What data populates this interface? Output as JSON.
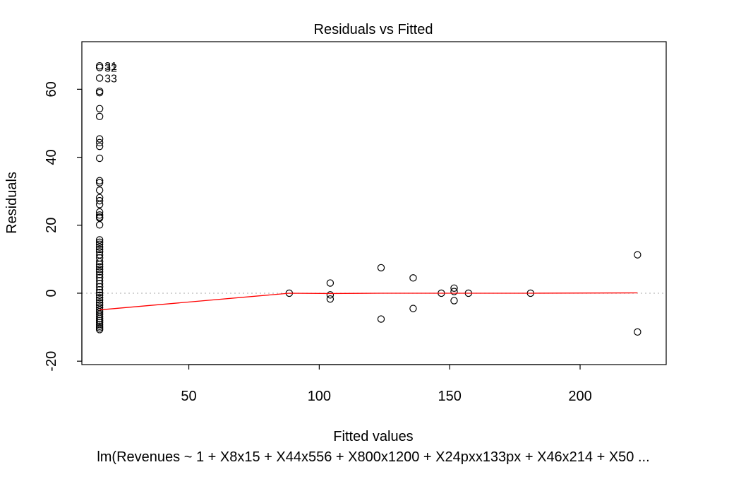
{
  "chart_data": {
    "type": "scatter",
    "title": "Residuals vs Fitted",
    "xlabel": "Fitted values",
    "ylabel": "Residuals",
    "subtitle": "lm(Revenues ~ 1 + X8x15 + X44x556 + X800x1200 + X24pxx133px + X46x214 + X50 ...",
    "xlim": [
      9,
      233
    ],
    "ylim": [
      -21,
      74
    ],
    "x_ticks": [
      50,
      100,
      150,
      200
    ],
    "y_ticks": [
      -20,
      0,
      20,
      40,
      60
    ],
    "reference_line": {
      "y": 0,
      "style": "dotted",
      "color": "#bbbbbb"
    },
    "points": [
      {
        "x": 15.8,
        "y": 66.9
      },
      {
        "x": 15.8,
        "y": 66.4
      },
      {
        "x": 15.8,
        "y": 63.3
      },
      {
        "x": 15.8,
        "y": 59.4
      },
      {
        "x": 15.8,
        "y": 59.0
      },
      {
        "x": 15.8,
        "y": 54.3
      },
      {
        "x": 15.8,
        "y": 52.0
      },
      {
        "x": 15.8,
        "y": 45.4
      },
      {
        "x": 15.8,
        "y": 44.3
      },
      {
        "x": 15.8,
        "y": 43.2
      },
      {
        "x": 15.8,
        "y": 39.7
      },
      {
        "x": 15.8,
        "y": 33.1
      },
      {
        "x": 15.8,
        "y": 32.5
      },
      {
        "x": 15.8,
        "y": 30.3
      },
      {
        "x": 15.8,
        "y": 28.1
      },
      {
        "x": 15.8,
        "y": 27.2
      },
      {
        "x": 15.8,
        "y": 26.1
      },
      {
        "x": 15.8,
        "y": 23.9
      },
      {
        "x": 15.8,
        "y": 23.0
      },
      {
        "x": 15.8,
        "y": 22.4
      },
      {
        "x": 15.8,
        "y": 22.1
      },
      {
        "x": 15.8,
        "y": 20.1
      },
      {
        "x": 15.8,
        "y": 15.7
      },
      {
        "x": 15.8,
        "y": 15.0
      },
      {
        "x": 15.8,
        "y": 14.4
      },
      {
        "x": 15.8,
        "y": 13.6
      },
      {
        "x": 15.8,
        "y": 12.9
      },
      {
        "x": 15.8,
        "y": 12.2
      },
      {
        "x": 15.8,
        "y": 11.3
      },
      {
        "x": 15.8,
        "y": 10.4
      },
      {
        "x": 15.8,
        "y": 9.3
      },
      {
        "x": 15.8,
        "y": 8.5
      },
      {
        "x": 15.8,
        "y": 7.8
      },
      {
        "x": 15.8,
        "y": 7.0
      },
      {
        "x": 15.8,
        "y": 6.3
      },
      {
        "x": 15.8,
        "y": 5.5
      },
      {
        "x": 15.8,
        "y": 4.6
      },
      {
        "x": 15.8,
        "y": 3.7
      },
      {
        "x": 15.8,
        "y": 2.8
      },
      {
        "x": 15.8,
        "y": 1.9
      },
      {
        "x": 15.8,
        "y": 1.0
      },
      {
        "x": 15.8,
        "y": 0.2
      },
      {
        "x": 15.8,
        "y": -0.6
      },
      {
        "x": 15.8,
        "y": -1.3
      },
      {
        "x": 15.8,
        "y": -2.0
      },
      {
        "x": 15.8,
        "y": -2.8
      },
      {
        "x": 15.8,
        "y": -3.5
      },
      {
        "x": 15.8,
        "y": -4.2
      },
      {
        "x": 15.8,
        "y": -4.9
      },
      {
        "x": 15.8,
        "y": -5.5
      },
      {
        "x": 15.8,
        "y": -6.2
      },
      {
        "x": 15.8,
        "y": -6.8
      },
      {
        "x": 15.8,
        "y": -7.4
      },
      {
        "x": 15.8,
        "y": -8.0
      },
      {
        "x": 15.8,
        "y": -8.6
      },
      {
        "x": 15.8,
        "y": -9.2
      },
      {
        "x": 15.8,
        "y": -9.7
      },
      {
        "x": 15.8,
        "y": -10.2
      },
      {
        "x": 15.8,
        "y": -10.7
      },
      {
        "x": 88.5,
        "y": 0.0
      },
      {
        "x": 104.2,
        "y": 3.0
      },
      {
        "x": 104.2,
        "y": -0.5
      },
      {
        "x": 104.2,
        "y": -1.7
      },
      {
        "x": 123.7,
        "y": 7.5
      },
      {
        "x": 123.7,
        "y": -7.6
      },
      {
        "x": 136.0,
        "y": 4.5
      },
      {
        "x": 136.0,
        "y": -4.5
      },
      {
        "x": 146.8,
        "y": 0.0
      },
      {
        "x": 151.7,
        "y": 1.5
      },
      {
        "x": 151.7,
        "y": 0.5
      },
      {
        "x": 151.7,
        "y": -2.2
      },
      {
        "x": 157.2,
        "y": 0.0
      },
      {
        "x": 181.0,
        "y": 0.0
      },
      {
        "x": 222.0,
        "y": 11.3
      },
      {
        "x": 222.0,
        "y": -11.4
      }
    ],
    "labeled_points": [
      {
        "label": "31",
        "x": 15.8,
        "y": 66.9
      },
      {
        "label": "32",
        "x": 15.8,
        "y": 66.4
      },
      {
        "label": "33",
        "x": 15.8,
        "y": 63.3
      }
    ],
    "smooth_line": {
      "color": "#ff0000",
      "x": [
        15.8,
        88.5,
        104.2,
        123.7,
        136.0,
        146.8,
        151.7,
        157.2,
        181.0,
        222.0
      ],
      "y": [
        -4.9,
        0.0,
        -0.1,
        0.0,
        0.0,
        0.0,
        0.0,
        0.0,
        0.0,
        0.1
      ]
    }
  }
}
